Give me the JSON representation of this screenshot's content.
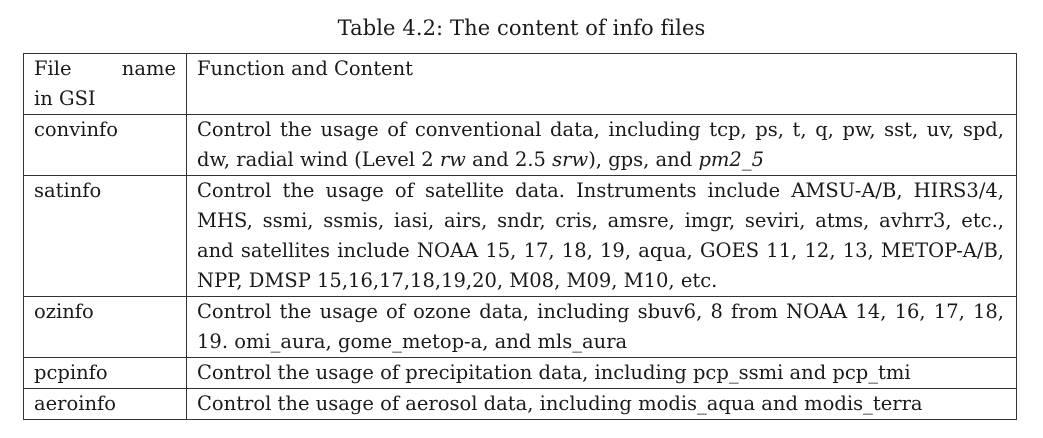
{
  "caption": "Table 4.2: The content of info files",
  "table": {
    "headers": {
      "col1_word1": "File",
      "col1_word2": "name",
      "col1_line2": "in GSI",
      "col2": "Function and Content"
    },
    "rows": [
      {
        "name": "convinfo",
        "content_a": "Control the usage of conventional data, including tcp, ps, t, q, pw, sst, uv, spd, dw, radial wind (Level 2 ",
        "content_em1": "rw",
        "content_b": " and 2.5 ",
        "content_em2": "srw",
        "content_c": "), gps, and ",
        "content_em3": "pm2_5"
      },
      {
        "name": "satinfo",
        "content": "Control the usage of satellite data.  Instruments include AMSU-A/B, HIRS3/4, MHS, ssmi, ssmis, iasi, airs, sndr, cris, amsre, imgr, seviri, atms, avhrr3, etc., and satellites include NOAA 15, 17, 18, 19, aqua, GOES 11, 12, 13, METOP-A/B, NPP, DMSP 15,16,17,18,19,20, M08, M09, M10, etc."
      },
      {
        "name": "ozinfo",
        "content": "Control the usage of ozone data, including sbuv6, 8 from NOAA 14, 16, 17, 18, 19. omi_aura, gome_metop-a, and mls_aura"
      },
      {
        "name": "pcpinfo",
        "content": "Control the usage of precipitation data, including pcp_ssmi and pcp_tmi"
      },
      {
        "name": "aeroinfo",
        "content": "Control the usage of aerosol data, including modis_aqua and modis_terra"
      }
    ]
  }
}
